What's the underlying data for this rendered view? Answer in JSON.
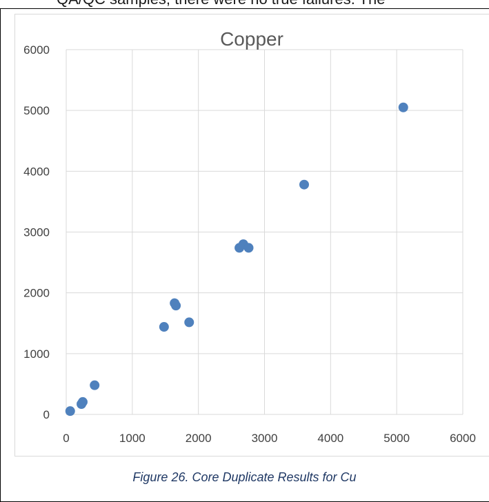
{
  "header_text": "QA/QC samples, there were no true failures.  The",
  "caption": "Figure 26. Core Duplicate Results for Cu",
  "chart_data": {
    "type": "scatter",
    "title": "Copper",
    "xlabel": "",
    "ylabel": "",
    "xlim": [
      0,
      6000
    ],
    "ylim": [
      0,
      6000
    ],
    "xticks": [
      0,
      1000,
      2000,
      3000,
      4000,
      5000,
      6000
    ],
    "yticks": [
      0,
      1000,
      2000,
      3000,
      4000,
      5000,
      6000
    ],
    "grid": true,
    "marker_color": "#4f81bd",
    "points": [
      {
        "x": 60,
        "y": 55
      },
      {
        "x": 230,
        "y": 170
      },
      {
        "x": 250,
        "y": 205
      },
      {
        "x": 430,
        "y": 480
      },
      {
        "x": 1480,
        "y": 1440
      },
      {
        "x": 1640,
        "y": 1830
      },
      {
        "x": 1660,
        "y": 1790
      },
      {
        "x": 1860,
        "y": 1515
      },
      {
        "x": 2620,
        "y": 2740
      },
      {
        "x": 2680,
        "y": 2800
      },
      {
        "x": 2760,
        "y": 2740
      },
      {
        "x": 3600,
        "y": 3780
      },
      {
        "x": 5100,
        "y": 5050
      }
    ]
  }
}
